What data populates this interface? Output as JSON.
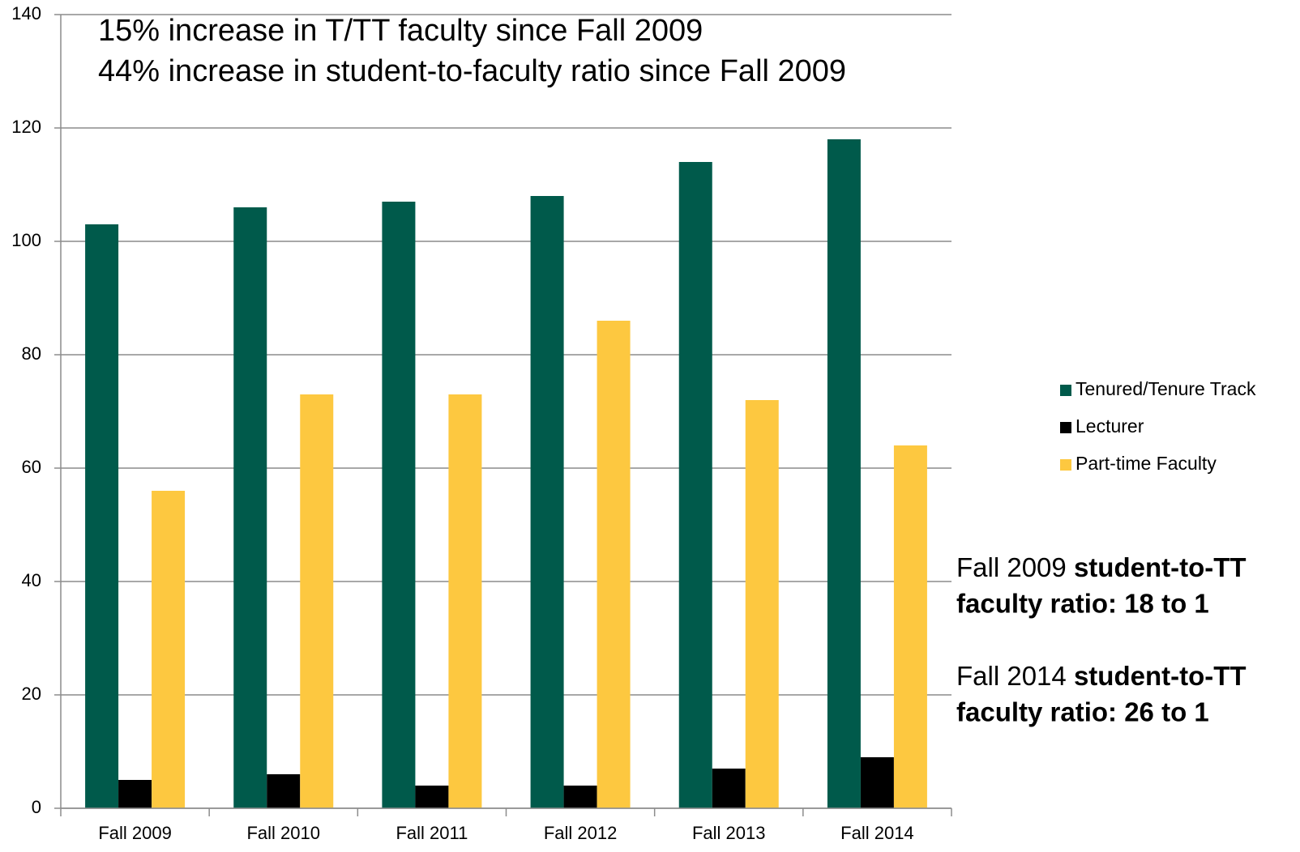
{
  "chart_data": {
    "type": "bar",
    "annotations": [
      "15% increase in T/TT faculty since Fall 2009",
      "44% increase in student-to-faculty ratio since Fall 2009"
    ],
    "notes": [
      {
        "prefix": "Fall 2009",
        "bold": [
          "student-to-TT",
          "faculty ratio: 18 to 1"
        ]
      },
      {
        "prefix": "Fall 2014",
        "bold": [
          "student-to-TT",
          "faculty ratio: 26 to 1"
        ]
      }
    ],
    "categories": [
      "Fall 2009",
      "Fall 2010",
      "Fall 2011",
      "Fall 2012",
      "Fall 2013",
      "Fall 2014"
    ],
    "series": [
      {
        "name": "Tenured/Tenure Track",
        "color": "#005a4b",
        "values": [
          103,
          106,
          107,
          108,
          114,
          118
        ]
      },
      {
        "name": "Lecturer",
        "color": "#000000",
        "values": [
          5,
          6,
          4,
          4,
          7,
          9
        ]
      },
      {
        "name": "Part-time Faculty",
        "color": "#fdc840",
        "values": [
          56,
          73,
          73,
          86,
          72,
          64
        ]
      }
    ],
    "ylim": [
      0,
      140
    ],
    "yticks": [
      0,
      20,
      40,
      60,
      80,
      100,
      120,
      140
    ],
    "grid": true,
    "legend": "right"
  }
}
